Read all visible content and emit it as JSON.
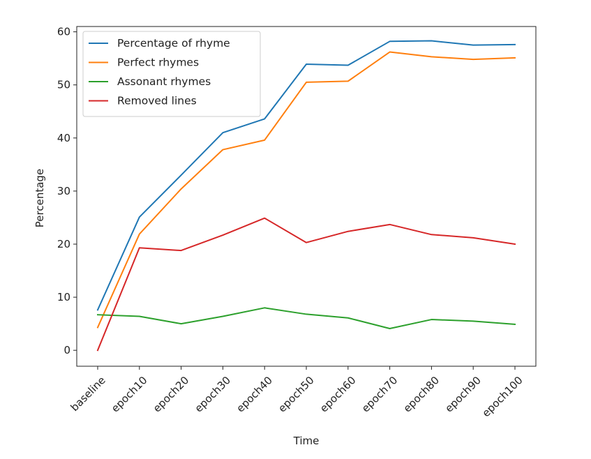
{
  "chart_data": {
    "type": "line",
    "title": "",
    "xlabel": "Time",
    "ylabel": "Percentage",
    "categories": [
      "baseline",
      "epoch10",
      "epoch20",
      "epoch30",
      "epoch40",
      "epoch50",
      "epoch60",
      "epoch70",
      "epoch80",
      "epoch90",
      "epoch100"
    ],
    "ylim": [
      -3,
      61
    ],
    "yticks": [
      0,
      10,
      20,
      30,
      40,
      50,
      60
    ],
    "grid": false,
    "legend_position": "top-left",
    "series": [
      {
        "name": "Percentage of rhyme",
        "color": "#1f77b4",
        "values": [
          7.6,
          25.1,
          33.0,
          41.0,
          43.6,
          53.9,
          53.7,
          58.2,
          58.3,
          57.5,
          57.6
        ]
      },
      {
        "name": "Perfect rhymes",
        "color": "#ff7f0e",
        "values": [
          4.3,
          21.9,
          30.4,
          37.8,
          39.6,
          50.5,
          50.7,
          56.2,
          55.3,
          54.8,
          55.1
        ]
      },
      {
        "name": "Assonant rhymes",
        "color": "#2ca02c",
        "values": [
          6.7,
          6.4,
          5.0,
          6.4,
          8.0,
          6.8,
          6.1,
          4.1,
          5.8,
          5.5,
          4.9
        ]
      },
      {
        "name": "Removed lines",
        "color": "#d62728",
        "values": [
          0.0,
          19.3,
          18.8,
          21.7,
          24.9,
          20.3,
          22.4,
          23.7,
          21.8,
          21.2,
          20.0
        ]
      }
    ]
  }
}
